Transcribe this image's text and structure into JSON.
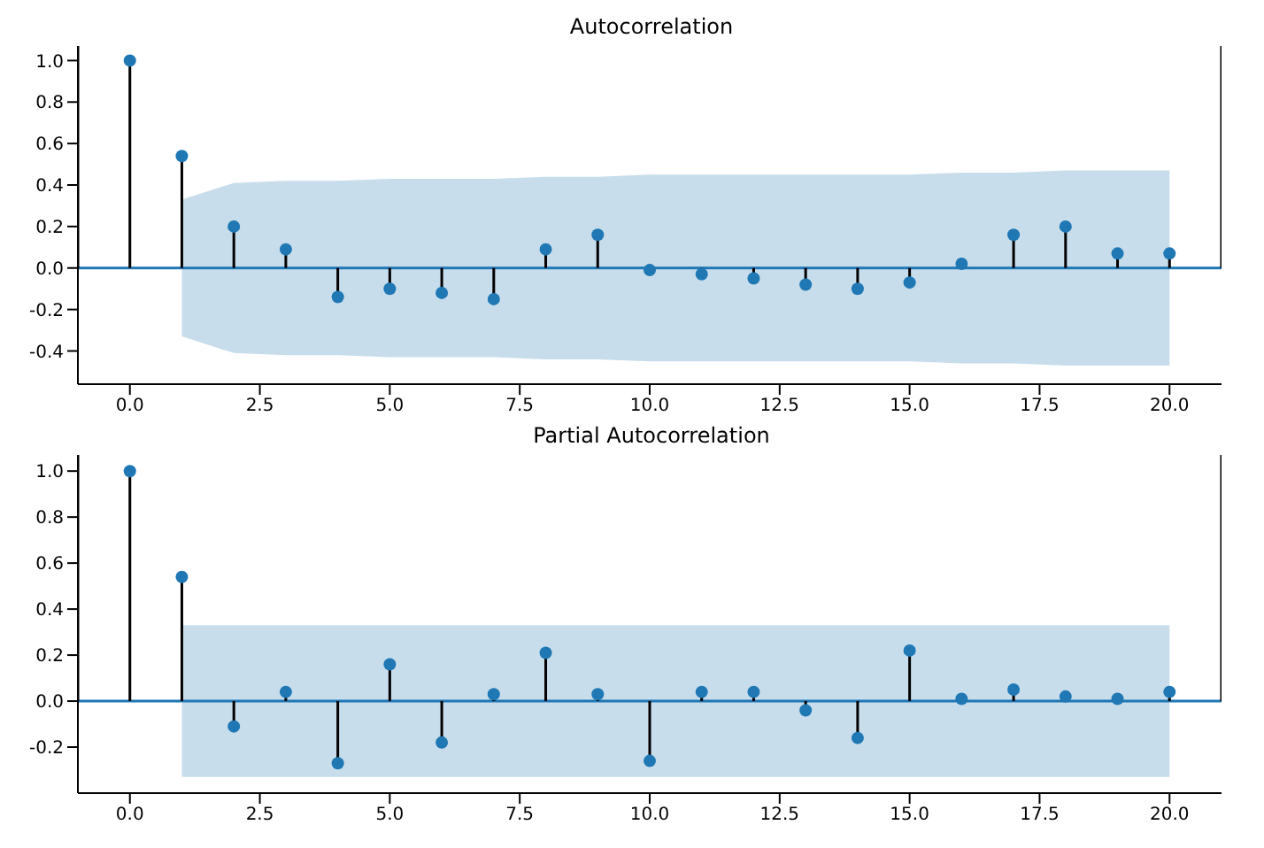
{
  "chart_data": [
    {
      "type": "lollipop",
      "title": "Autocorrelation",
      "x": [
        0,
        1,
        2,
        3,
        4,
        5,
        6,
        7,
        8,
        9,
        10,
        11,
        12,
        13,
        14,
        15,
        16,
        17,
        18,
        19,
        20
      ],
      "series": [
        {
          "color": "#1f77b4",
          "marker": "circle",
          "values": [
            1.0,
            0.54,
            0.2,
            0.09,
            -0.14,
            -0.1,
            -0.12,
            -0.15,
            0.09,
            0.16,
            -0.01,
            -0.03,
            -0.05,
            -0.08,
            -0.1,
            -0.07,
            0.02,
            0.16,
            0.2,
            0.07,
            0.07
          ]
        },
        {
          "type": "line",
          "color": "#1f77b4",
          "x": [
            -1,
            0,
            1,
            2,
            3,
            4,
            5,
            6,
            7,
            8,
            9,
            10,
            11,
            12,
            13,
            14,
            15,
            16,
            17,
            18,
            19,
            20,
            21
          ],
          "values": [
            0,
            0,
            0,
            0,
            0,
            0,
            0,
            0,
            0,
            0,
            0,
            0,
            0,
            0,
            0,
            0,
            0,
            0,
            0,
            0,
            0,
            0,
            0
          ],
          "lower": [
            null,
            null,
            -0.33,
            -0.41,
            -0.42,
            -0.42,
            -0.43,
            -0.43,
            -0.43,
            -0.44,
            -0.44,
            -0.45,
            -0.45,
            -0.45,
            -0.45,
            -0.45,
            -0.45,
            -0.46,
            -0.46,
            -0.47,
            -0.47,
            -0.47,
            null
          ],
          "upper": [
            null,
            null,
            0.33,
            0.41,
            0.42,
            0.42,
            0.43,
            0.43,
            0.43,
            0.44,
            0.44,
            0.45,
            0.45,
            0.45,
            0.45,
            0.45,
            0.45,
            0.46,
            0.46,
            0.47,
            0.47,
            0.47,
            null
          ]
        }
      ],
      "xlim": [
        -1,
        21
      ],
      "xticks": [
        {
          "value": 0,
          "label": "0.0"
        },
        {
          "value": 2.5,
          "label": "2.5"
        },
        {
          "value": 5,
          "label": "5.0"
        },
        {
          "value": 7.5,
          "label": "7.5"
        },
        {
          "value": 10,
          "label": "10.0"
        },
        {
          "value": 12.5,
          "label": "12.5"
        },
        {
          "value": 15,
          "label": "15.0"
        },
        {
          "value": 17.5,
          "label": "17.5"
        },
        {
          "value": 20,
          "label": "20.0"
        }
      ],
      "ylim": [
        -0.56,
        1.07
      ],
      "yticks": [
        {
          "value": -0.4,
          "label": "-0.4"
        },
        {
          "value": -0.2,
          "label": "-0.2"
        },
        {
          "value": 0,
          "label": "0.0"
        },
        {
          "value": 0.2,
          "label": "0.2"
        },
        {
          "value": 0.4,
          "label": "0.4"
        },
        {
          "value": 0.6,
          "label": "0.6"
        },
        {
          "value": 0.8,
          "label": "0.8"
        },
        {
          "value": 1,
          "label": "1.0"
        }
      ],
      "tick_labels": "xy"
    },
    {
      "type": "lollipop",
      "title": "Partial Autocorrelation",
      "x": [
        0,
        1,
        2,
        3,
        4,
        5,
        6,
        7,
        8,
        9,
        10,
        11,
        12,
        13,
        14,
        15,
        16,
        17,
        18,
        19,
        20
      ],
      "series": [
        {
          "color": "#1f77b4",
          "marker": "circle",
          "values": [
            1.0,
            0.54,
            -0.11,
            0.04,
            -0.27,
            0.16,
            -0.18,
            0.03,
            0.21,
            0.03,
            -0.26,
            0.04,
            0.04,
            -0.04,
            -0.16,
            0.22,
            0.01,
            0.05,
            0.02,
            0.01,
            0.04
          ]
        },
        {
          "type": "line",
          "color": "#1f77b4",
          "x": [
            -1,
            0,
            1,
            2,
            3,
            4,
            5,
            6,
            7,
            8,
            9,
            10,
            11,
            12,
            13,
            14,
            15,
            16,
            17,
            18,
            19,
            20,
            21
          ],
          "values": [
            0,
            0,
            0,
            0,
            0,
            0,
            0,
            0,
            0,
            0,
            0,
            0,
            0,
            0,
            0,
            0,
            0,
            0,
            0,
            0,
            0,
            0,
            0
          ],
          "lower": [
            null,
            null,
            -0.33,
            -0.33,
            -0.33,
            -0.33,
            -0.33,
            -0.33,
            -0.33,
            -0.33,
            -0.33,
            -0.33,
            -0.33,
            -0.33,
            -0.33,
            -0.33,
            -0.33,
            -0.33,
            -0.33,
            -0.33,
            -0.33,
            -0.33,
            null
          ],
          "upper": [
            null,
            null,
            0.33,
            0.33,
            0.33,
            0.33,
            0.33,
            0.33,
            0.33,
            0.33,
            0.33,
            0.33,
            0.33,
            0.33,
            0.33,
            0.33,
            0.33,
            0.33,
            0.33,
            0.33,
            0.33,
            0.33,
            null
          ]
        }
      ],
      "xlim": [
        -1,
        21
      ],
      "xticks": [
        {
          "value": 0,
          "label": "0.0"
        },
        {
          "value": 2.5,
          "label": "2.5"
        },
        {
          "value": 5,
          "label": "5.0"
        },
        {
          "value": 7.5,
          "label": "7.5"
        },
        {
          "value": 10,
          "label": "10.0"
        },
        {
          "value": 12.5,
          "label": "12.5"
        },
        {
          "value": 15,
          "label": "15.0"
        },
        {
          "value": 17.5,
          "label": "17.5"
        },
        {
          "value": 20,
          "label": "20.0"
        }
      ],
      "ylim": [
        -0.4,
        1.07
      ],
      "yticks": [
        {
          "value": -0.2,
          "label": "-0.2"
        },
        {
          "value": 0,
          "label": "0.0"
        },
        {
          "value": 0.2,
          "label": "0.2"
        },
        {
          "value": 0.4,
          "label": "0.4"
        },
        {
          "value": 0.6,
          "label": "0.6"
        },
        {
          "value": 0.8,
          "label": "0.8"
        },
        {
          "value": 1,
          "label": "1.0"
        }
      ],
      "tick_labels": "xy"
    }
  ]
}
